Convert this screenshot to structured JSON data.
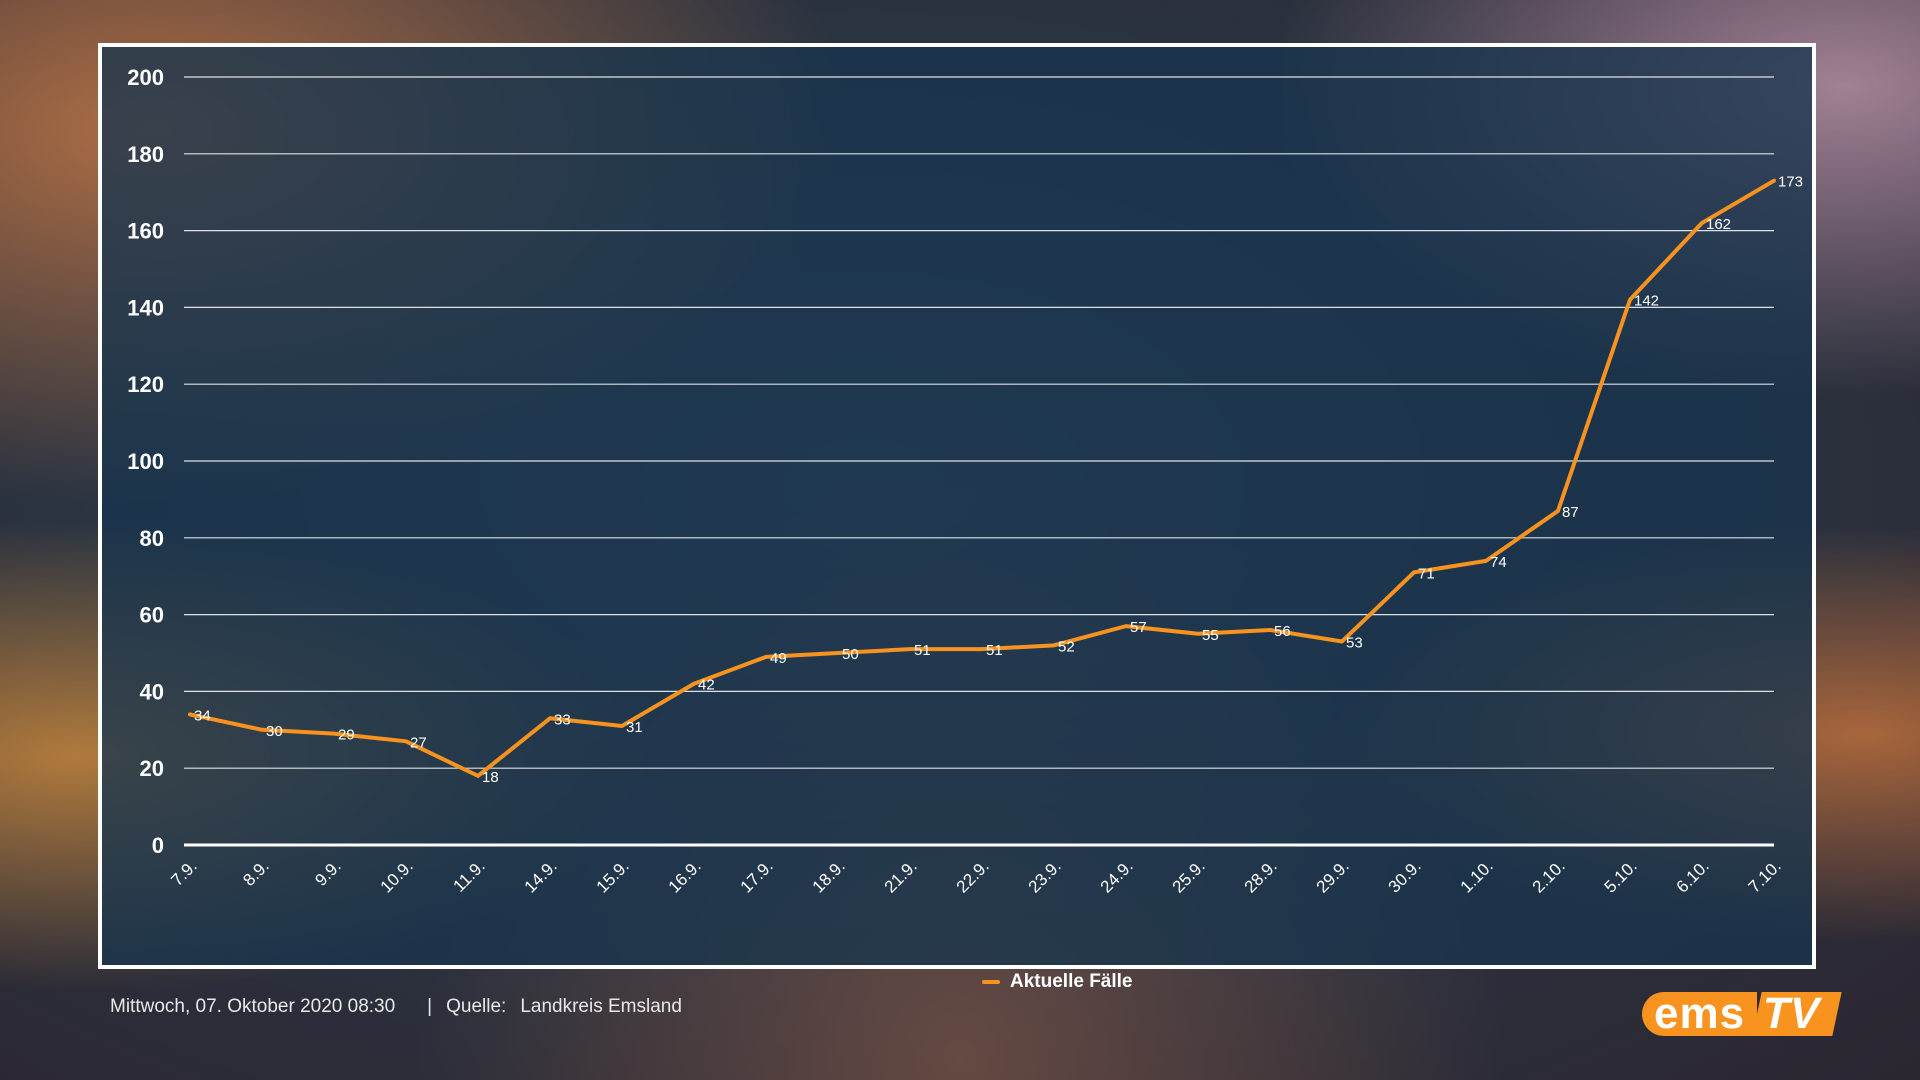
{
  "chart_data": {
    "type": "line",
    "categories": [
      "7.9.",
      "8.9.",
      "9.9.",
      "10.9.",
      "11.9.",
      "14.9.",
      "15.9.",
      "16.9.",
      "17.9.",
      "18.9.",
      "21.9.",
      "22.9.",
      "23.9.",
      "24.9.",
      "25.9.",
      "28.9.",
      "29.9.",
      "30.9.",
      "1.10.",
      "2.10.",
      "5.10.",
      "6.10.",
      "7.10."
    ],
    "series": [
      {
        "name": "Aktuelle Fälle",
        "values": [
          34,
          30,
          29,
          27,
          18,
          33,
          31,
          42,
          49,
          50,
          51,
          51,
          52,
          57,
          55,
          56,
          53,
          71,
          74,
          87,
          142,
          162,
          173
        ],
        "color": "#f7931e"
      }
    ],
    "ylim": [
      0,
      200
    ],
    "yticks": [
      0,
      20,
      40,
      60,
      80,
      100,
      120,
      140,
      160,
      180,
      200
    ],
    "grid": true,
    "legend": "bottom-center"
  },
  "legend": {
    "label": "Aktuelle Fälle"
  },
  "footer": {
    "timestamp": "Mittwoch, 07. Oktober 2020 08:30",
    "separator": "|",
    "source_label": "Quelle:",
    "source_value": "Landkreis Emsland"
  },
  "logo": {
    "part1": "ems",
    "part2": "TV"
  },
  "colors": {
    "line": "#f7931e",
    "grid": "#ffffff",
    "text": "#ffffff"
  }
}
